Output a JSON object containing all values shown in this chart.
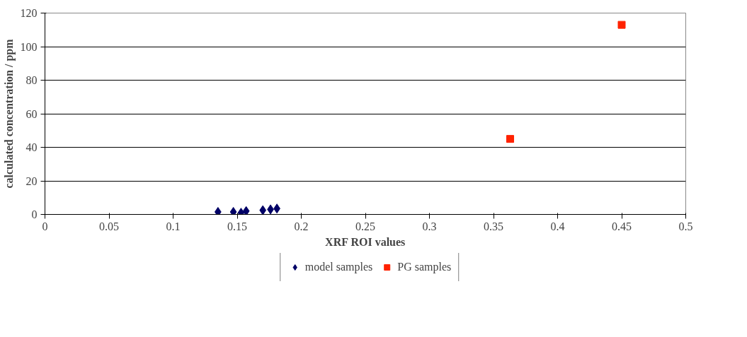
{
  "chart_data": {
    "type": "scatter",
    "xlabel": "XRF ROI values",
    "ylabel": "calculated concentration / ppm",
    "xlim": [
      0,
      0.5
    ],
    "xticks": [
      0,
      0.05,
      0.1,
      0.15,
      0.2,
      0.25,
      0.3,
      0.35,
      0.4,
      0.45,
      0.5
    ],
    "ylim": [
      0,
      120
    ],
    "yticks": [
      0,
      20,
      40,
      60,
      80,
      100,
      120
    ],
    "grid": "y",
    "legend": "bottom",
    "series": [
      {
        "name": "model samples",
        "color": "#000066",
        "marker": "diamond",
        "x": [
          0.135,
          0.147,
          0.153,
          0.157,
          0.17,
          0.176,
          0.181
        ],
        "values": [
          1.5,
          1.5,
          1,
          2,
          2.5,
          3,
          3.5
        ]
      },
      {
        "name": "PG samples",
        "color": "#ff2200",
        "marker": "square",
        "x": [
          0.363,
          0.45
        ],
        "values": [
          45,
          113
        ]
      }
    ]
  }
}
